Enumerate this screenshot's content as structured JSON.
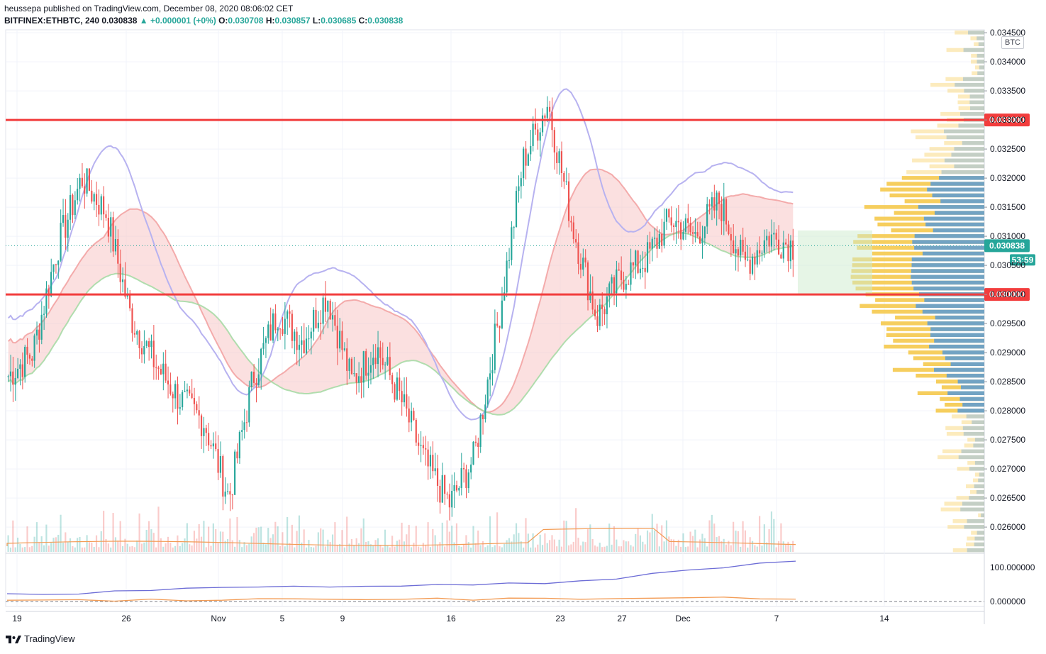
{
  "header": {
    "line1": "heussepa published on TradingView.com, December 08, 2020 08:06:02 CET",
    "symbol": "BITFINEX:ETHBTC, 240",
    "price": "0.030838",
    "change": "▲ +0.000001 (+0%)",
    "o_label": "O:",
    "o": "0.030708",
    "h_label": "H:",
    "h": "0.030857",
    "l_label": "L:",
    "l": "0.030685",
    "c_label": "C:",
    "c": "0.030838"
  },
  "currency_badge": "BTC",
  "footer": {
    "brand": "TradingView"
  },
  "colors": {
    "up": "#26a69a",
    "down": "#ef5350",
    "level": "#f23d3d",
    "tenkan": "#b7b2f0",
    "cloud_red": "#f8c6c6",
    "cloud_green": "#cdeccd",
    "vp_yellow": "#f5c542",
    "vp_blue": "#5b9bd5",
    "cmf": "#6c6cd6",
    "ma": "#f39c55"
  },
  "chart_data": {
    "type": "candlestick",
    "title": "BITFINEX:ETHBTC, 240",
    "ylabel": "BTC",
    "ylim": [
      0.02555,
      0.03455
    ],
    "y_ticks": [
      "0.026000",
      "0.026500",
      "0.027000",
      "0.027500",
      "0.028000",
      "0.028500",
      "0.029000",
      "0.029500",
      "0.030000",
      "0.030500",
      "0.031000",
      "0.031500",
      "0.032000",
      "0.032500",
      "0.033000",
      "0.033500",
      "0.034000",
      "0.034500"
    ],
    "x_ticks": [
      "19",
      "26",
      "Nov",
      "5",
      "9",
      "16",
      "23",
      "27",
      "Dec",
      "7",
      "14"
    ],
    "horizontal_levels": [
      {
        "label": "0.033000",
        "value": 0.033
      },
      {
        "label": "0.030000",
        "value": 0.03
      }
    ],
    "last_price": {
      "label": "0.030838",
      "value": 0.030838,
      "countdown": "53:59"
    },
    "price_path": [
      [
        "19",
        0.0286
      ],
      [
        "21",
        0.029
      ],
      [
        "22",
        0.0308
      ],
      [
        "24",
        0.032
      ],
      [
        "26",
        0.0314
      ],
      [
        "28",
        0.0296
      ],
      [
        "30",
        0.0288
      ],
      [
        "Nov",
        0.0282
      ],
      [
        "3",
        0.0278
      ],
      [
        "5",
        0.0265
      ],
      [
        "6",
        0.0286
      ],
      [
        "8",
        0.0297
      ],
      [
        "9",
        0.0292
      ],
      [
        "11",
        0.03
      ],
      [
        "13",
        0.0285
      ],
      [
        "14",
        0.0291
      ],
      [
        "16",
        0.0282
      ],
      [
        "18",
        0.0271
      ],
      [
        "19",
        0.0264
      ],
      [
        "21",
        0.0272
      ],
      [
        "22",
        0.0296
      ],
      [
        "23",
        0.0323
      ],
      [
        "24",
        0.0333
      ],
      [
        "25",
        0.0312
      ],
      [
        "26",
        0.0296
      ],
      [
        "27",
        0.0303
      ],
      [
        "29",
        0.0306
      ],
      [
        "30",
        0.0313
      ],
      [
        "Dec",
        0.031
      ],
      [
        "3",
        0.0316
      ],
      [
        "5",
        0.0305
      ],
      [
        "7",
        0.031
      ],
      [
        "8",
        0.030838
      ]
    ],
    "lower_pane": {
      "y_ticks": [
        "0.000000",
        "100.000000"
      ],
      "series": [
        {
          "values": [
            20,
            22,
            25,
            30,
            35,
            38,
            40,
            42,
            42,
            42,
            45,
            45,
            48,
            50,
            52,
            55,
            60,
            65,
            80,
            95,
            100,
            110,
            120
          ]
        },
        {
          "values": [
            3,
            3,
            4,
            4,
            5,
            5,
            6,
            6,
            6,
            6,
            6,
            6,
            7,
            7,
            7,
            8,
            8,
            8,
            9,
            9,
            10,
            10,
            9
          ]
        }
      ]
    }
  }
}
